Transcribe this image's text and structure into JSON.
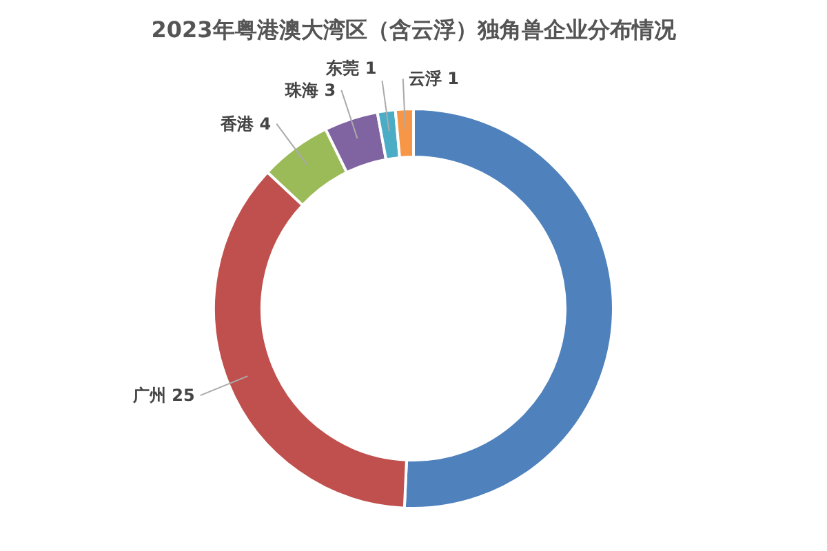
{
  "chart_data": {
    "type": "donut",
    "title": "2023年粤港澳大湾区（含云浮）独角兽企业分布情况",
    "categories": [
      null,
      "广州",
      "香港",
      "珠海",
      "东莞",
      "云浮"
    ],
    "values": [
      35,
      25,
      4,
      3,
      1,
      1
    ],
    "value_labels": [
      null,
      "25",
      "4",
      "3",
      "1",
      "1"
    ],
    "colors": [
      "#4f81bd",
      "#c0504d",
      "#9bbb59",
      "#8064a2",
      "#4bacc6",
      "#f79646"
    ],
    "legend": false
  }
}
